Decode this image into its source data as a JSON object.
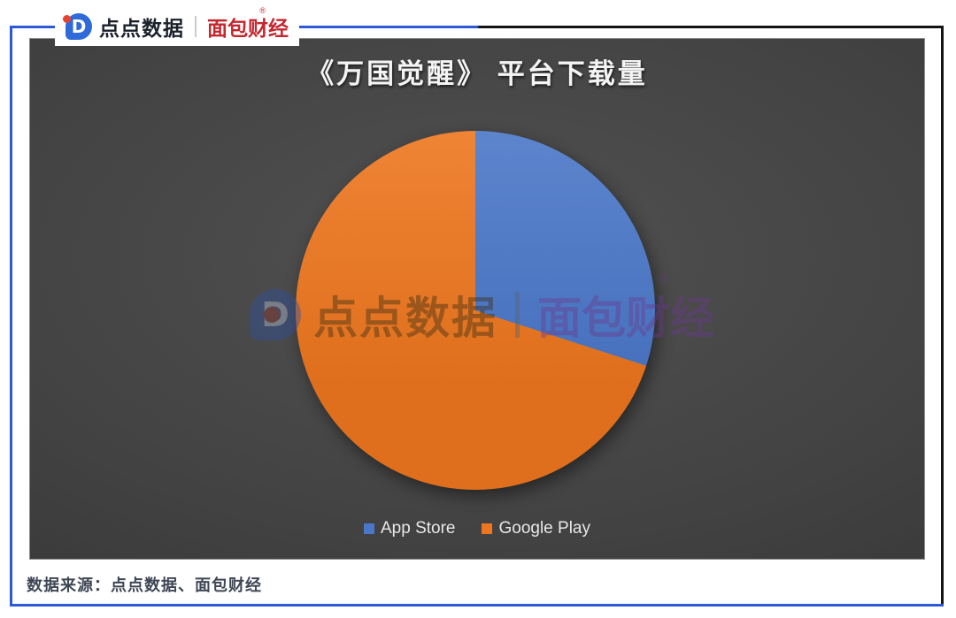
{
  "header": {
    "logo_letter": "D",
    "brand_left": "点点数据",
    "divider": "|",
    "brand_right": "面包财经",
    "registered_mark": "®"
  },
  "chart": {
    "title": "《万国觉醒》 平台下载量"
  },
  "chart_data": {
    "type": "pie",
    "title": "《万国觉醒》 平台下载量",
    "slices": [
      {
        "label": "App Store",
        "value_pct": 30,
        "color": "#4a77c8"
      },
      {
        "label": "Google Play",
        "value_pct": 70,
        "color": "#ed761e"
      }
    ],
    "start_angle_deg": 0,
    "direction": "clockwise",
    "legend_position": "bottom",
    "background": "dark-gray-gradient"
  },
  "legend": {
    "items": [
      {
        "label": "App Store",
        "color": "#4a77c8"
      },
      {
        "label": "Google Play",
        "color": "#ed761e"
      }
    ]
  },
  "watermark": {
    "logo_letter": "D",
    "text_left": "点点数据",
    "divider": "|",
    "text_right": "面包财经",
    "registered_mark": "®"
  },
  "footer": {
    "source": "数据来源：点点数据、面包财经"
  },
  "colors": {
    "frame_blue": "#2b59d8",
    "frame_black": "#141414",
    "brand_navy": "#1b202b",
    "brand_red": "#c4272e",
    "pie_blue": "#4a77c8",
    "pie_orange": "#ed761e",
    "chart_bg_center": "#515151",
    "chart_bg_edge": "#2c2c2c"
  }
}
